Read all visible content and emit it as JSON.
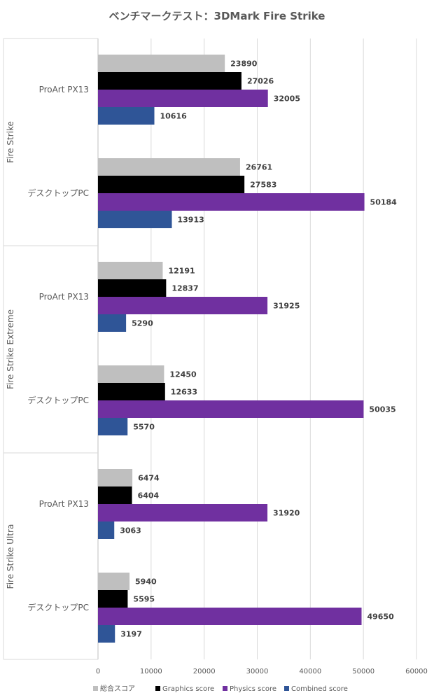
{
  "chart_data": {
    "type": "bar",
    "orientation": "horizontal",
    "title": "ベンチマークテスト：3DMark Fire Strike",
    "xlim": [
      0,
      60000
    ],
    "x_ticks": [
      0,
      10000,
      20000,
      30000,
      40000,
      50000,
      60000
    ],
    "tick_labels": [
      "0",
      "10000",
      "20000",
      "30000",
      "40000",
      "50000",
      "60000"
    ],
    "grid": true,
    "legend_position": "bottom",
    "series": [
      {
        "name": "総合スコア",
        "color": "#bfbfbf"
      },
      {
        "name": "Graphics score",
        "color": "#000000"
      },
      {
        "name": "Physics score",
        "color": "#7030a0"
      },
      {
        "name": "Combined score",
        "color": "#2f5597"
      }
    ],
    "groups": [
      {
        "label": "Fire Strike",
        "categories": [
          {
            "label": "ProArt PX13",
            "values": [
              23890,
              27026,
              32005,
              10616
            ]
          },
          {
            "label": "デスクトップPC",
            "values": [
              26761,
              27583,
              50184,
              13913
            ]
          }
        ]
      },
      {
        "label": "Fire Strike Extreme",
        "categories": [
          {
            "label": "ProArt PX13",
            "values": [
              12191,
              12837,
              31925,
              5290
            ]
          },
          {
            "label": "デスクトップPC",
            "values": [
              12450,
              12633,
              50035,
              5570
            ]
          }
        ]
      },
      {
        "label": "Fire Strike Ultra",
        "categories": [
          {
            "label": "ProArt PX13",
            "values": [
              6474,
              6404,
              31920,
              3063
            ]
          },
          {
            "label": "デスクトップPC",
            "values": [
              5940,
              5595,
              49650,
              3197
            ]
          }
        ]
      }
    ]
  }
}
